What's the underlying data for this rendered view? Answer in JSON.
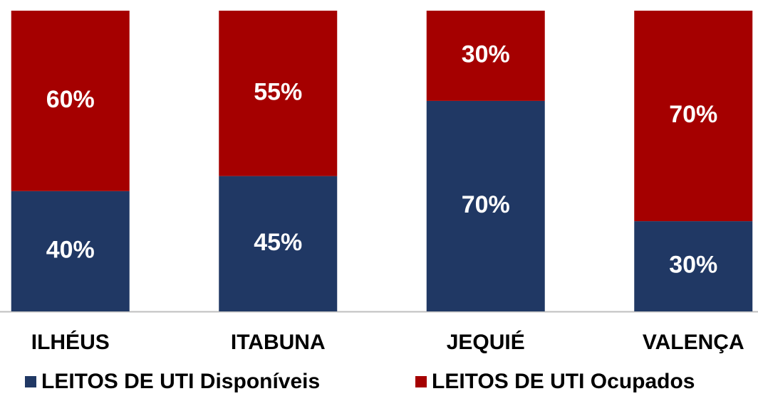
{
  "chart_data": {
    "type": "stacked-bar-percent",
    "categories": [
      "ILHÉUS",
      "ITABUNA",
      "JEQUIÉ",
      "VALENÇA"
    ],
    "series": [
      {
        "name": "LEITOS DE UTI Disponíveis",
        "color": "#203864",
        "values": [
          40,
          45,
          70,
          30
        ],
        "value_labels": [
          "40%",
          "45%",
          "70%",
          "30%"
        ]
      },
      {
        "name": "LEITOS DE UTI Ocupados",
        "color": "#a50000",
        "values": [
          60,
          55,
          30,
          70
        ],
        "value_labels": [
          "60%",
          "55%",
          "30%",
          "70%"
        ]
      }
    ],
    "legend": "bottom"
  }
}
